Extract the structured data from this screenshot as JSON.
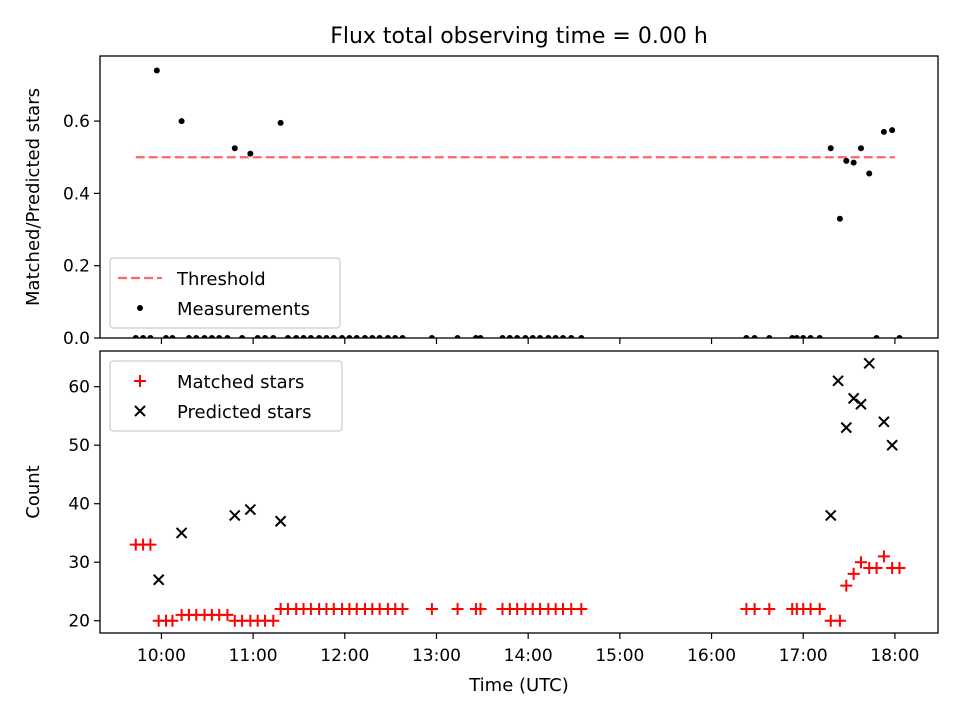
{
  "chart_data": {
    "type": "scatter",
    "title": "Flux total observing time = 0.00 h",
    "xlabel": "Time (UTC)",
    "xlim": [
      9.33,
      18.47
    ],
    "xticks": [
      {
        "value": 10,
        "label": "10:00"
      },
      {
        "value": 11,
        "label": "11:00"
      },
      {
        "value": 12,
        "label": "12:00"
      },
      {
        "value": 13,
        "label": "13:00"
      },
      {
        "value": 14,
        "label": "14:00"
      },
      {
        "value": 15,
        "label": "15:00"
      },
      {
        "value": 16,
        "label": "16:00"
      },
      {
        "value": 17,
        "label": "17:00"
      },
      {
        "value": 18,
        "label": "18:00"
      }
    ],
    "panels": [
      {
        "ylabel": "Matched/Predicted stars",
        "ylim": [
          0,
          0.78
        ],
        "yticks": [
          {
            "value": 0,
            "label": "0.0"
          },
          {
            "value": 0.2,
            "label": "0.2"
          },
          {
            "value": 0.4,
            "label": "0.4"
          },
          {
            "value": 0.6,
            "label": "0.6"
          }
        ],
        "legend_position": "lower-left",
        "threshold": {
          "name": "Threshold",
          "value": 0.5,
          "x_range": [
            9.72,
            18.0
          ],
          "color": "#ff6666"
        },
        "series": [
          {
            "name": "Measurements",
            "marker": "dot",
            "color": "#000000",
            "points": [
              [
                9.72,
                0.0
              ],
              [
                9.8,
                0.0
              ],
              [
                9.88,
                0.0
              ],
              [
                9.95,
                0.74
              ],
              [
                10.05,
                0.0
              ],
              [
                10.12,
                0.0
              ],
              [
                10.22,
                0.6
              ],
              [
                10.3,
                0.0
              ],
              [
                10.38,
                0.0
              ],
              [
                10.47,
                0.0
              ],
              [
                10.55,
                0.0
              ],
              [
                10.63,
                0.0
              ],
              [
                10.72,
                0.0
              ],
              [
                10.8,
                0.525
              ],
              [
                10.88,
                0.0
              ],
              [
                10.97,
                0.51
              ],
              [
                11.05,
                0.0
              ],
              [
                11.13,
                0.0
              ],
              [
                11.22,
                0.0
              ],
              [
                11.3,
                0.595
              ],
              [
                11.38,
                0.0
              ],
              [
                11.47,
                0.0
              ],
              [
                11.55,
                0.0
              ],
              [
                11.63,
                0.0
              ],
              [
                11.72,
                0.0
              ],
              [
                11.8,
                0.0
              ],
              [
                11.88,
                0.0
              ],
              [
                11.97,
                0.0
              ],
              [
                12.05,
                0.0
              ],
              [
                12.13,
                0.0
              ],
              [
                12.22,
                0.0
              ],
              [
                12.3,
                0.0
              ],
              [
                12.38,
                0.0
              ],
              [
                12.47,
                0.0
              ],
              [
                12.55,
                0.0
              ],
              [
                12.63,
                0.0
              ],
              [
                12.95,
                0.0
              ],
              [
                13.23,
                0.0
              ],
              [
                13.43,
                0.0
              ],
              [
                13.48,
                0.0
              ],
              [
                13.72,
                0.0
              ],
              [
                13.8,
                0.0
              ],
              [
                13.88,
                0.0
              ],
              [
                13.97,
                0.0
              ],
              [
                14.05,
                0.0
              ],
              [
                14.13,
                0.0
              ],
              [
                14.22,
                0.0
              ],
              [
                14.3,
                0.0
              ],
              [
                14.38,
                0.0
              ],
              [
                14.47,
                0.0
              ],
              [
                14.58,
                0.0
              ],
              [
                16.38,
                0.0
              ],
              [
                16.47,
                0.0
              ],
              [
                16.63,
                0.0
              ],
              [
                16.88,
                0.0
              ],
              [
                16.93,
                0.0
              ],
              [
                17.0,
                0.0
              ],
              [
                17.08,
                0.0
              ],
              [
                17.18,
                0.0
              ],
              [
                17.3,
                0.525
              ],
              [
                17.4,
                0.33
              ],
              [
                17.47,
                0.49
              ],
              [
                17.55,
                0.485
              ],
              [
                17.63,
                0.525
              ],
              [
                17.72,
                0.455
              ],
              [
                17.8,
                0.0
              ],
              [
                17.88,
                0.57
              ],
              [
                17.97,
                0.575
              ],
              [
                18.05,
                0.0
              ]
            ]
          }
        ]
      },
      {
        "ylabel": "Count",
        "ylim": [
          17.9,
          66.1
        ],
        "yticks": [
          {
            "value": 20,
            "label": "20"
          },
          {
            "value": 30,
            "label": "30"
          },
          {
            "value": 40,
            "label": "40"
          },
          {
            "value": 50,
            "label": "50"
          },
          {
            "value": 60,
            "label": "60"
          }
        ],
        "legend_position": "upper-left",
        "series": [
          {
            "name": "Matched stars",
            "marker": "plus",
            "color": "#ff0000",
            "points": [
              [
                9.72,
                33
              ],
              [
                9.8,
                33
              ],
              [
                9.88,
                33
              ],
              [
                9.97,
                20
              ],
              [
                10.05,
                20
              ],
              [
                10.12,
                20
              ],
              [
                10.22,
                21
              ],
              [
                10.3,
                21
              ],
              [
                10.38,
                21
              ],
              [
                10.47,
                21
              ],
              [
                10.55,
                21
              ],
              [
                10.63,
                21
              ],
              [
                10.72,
                21
              ],
              [
                10.8,
                20
              ],
              [
                10.88,
                20
              ],
              [
                10.97,
                20
              ],
              [
                11.05,
                20
              ],
              [
                11.13,
                20
              ],
              [
                11.22,
                20
              ],
              [
                11.3,
                22
              ],
              [
                11.38,
                22
              ],
              [
                11.47,
                22
              ],
              [
                11.55,
                22
              ],
              [
                11.63,
                22
              ],
              [
                11.72,
                22
              ],
              [
                11.8,
                22
              ],
              [
                11.88,
                22
              ],
              [
                11.97,
                22
              ],
              [
                12.05,
                22
              ],
              [
                12.13,
                22
              ],
              [
                12.22,
                22
              ],
              [
                12.3,
                22
              ],
              [
                12.38,
                22
              ],
              [
                12.47,
                22
              ],
              [
                12.55,
                22
              ],
              [
                12.63,
                22
              ],
              [
                12.95,
                22
              ],
              [
                13.23,
                22
              ],
              [
                13.43,
                22
              ],
              [
                13.48,
                22
              ],
              [
                13.72,
                22
              ],
              [
                13.8,
                22
              ],
              [
                13.88,
                22
              ],
              [
                13.97,
                22
              ],
              [
                14.05,
                22
              ],
              [
                14.13,
                22
              ],
              [
                14.22,
                22
              ],
              [
                14.3,
                22
              ],
              [
                14.38,
                22
              ],
              [
                14.47,
                22
              ],
              [
                14.58,
                22
              ],
              [
                16.38,
                22
              ],
              [
                16.47,
                22
              ],
              [
                16.63,
                22
              ],
              [
                16.88,
                22
              ],
              [
                16.93,
                22
              ],
              [
                17.0,
                22
              ],
              [
                17.08,
                22
              ],
              [
                17.18,
                22
              ],
              [
                17.3,
                20
              ],
              [
                17.4,
                20
              ],
              [
                17.47,
                26
              ],
              [
                17.55,
                28
              ],
              [
                17.63,
                30
              ],
              [
                17.72,
                29
              ],
              [
                17.8,
                29
              ],
              [
                17.88,
                31
              ],
              [
                17.97,
                29
              ],
              [
                18.05,
                29
              ]
            ]
          },
          {
            "name": "Predicted stars",
            "marker": "x",
            "color": "#000000",
            "points": [
              [
                9.97,
                27
              ],
              [
                10.22,
                35
              ],
              [
                10.8,
                38
              ],
              [
                10.97,
                39
              ],
              [
                11.3,
                37
              ],
              [
                17.3,
                38
              ],
              [
                17.38,
                61
              ],
              [
                17.47,
                53
              ],
              [
                17.55,
                58
              ],
              [
                17.63,
                57
              ],
              [
                17.72,
                64
              ],
              [
                17.88,
                54
              ],
              [
                17.97,
                50
              ]
            ]
          }
        ]
      }
    ]
  }
}
